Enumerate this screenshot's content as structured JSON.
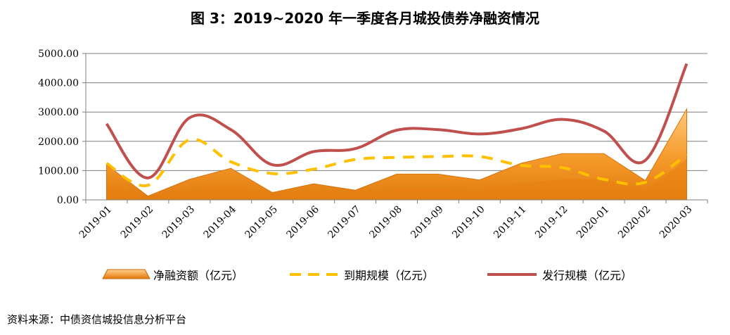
{
  "chart_data": {
    "type": "area",
    "title": "图 3：2019~2020 年一季度各月城投债券净融资情况",
    "categories": [
      "2019-01",
      "2019-02",
      "2019-03",
      "2019-04",
      "2019-05",
      "2019-06",
      "2019-07",
      "2019-08",
      "2019-09",
      "2019-10",
      "2019-11",
      "2019-12",
      "2020-01",
      "2020-02",
      "2020-03"
    ],
    "y_tick_labels": [
      "0.00",
      "1000.00",
      "2000.00",
      "3000.00",
      "4000.00",
      "5000.00"
    ],
    "ylim": [
      0,
      5000
    ],
    "xlabel": "",
    "ylabel": "",
    "grid": true,
    "legend_position": "bottom",
    "series": [
      {
        "name": "净融资额（亿元）",
        "kind": "area",
        "color": "#F5A623",
        "values": [
          1200,
          130,
          700,
          1080,
          250,
          550,
          330,
          880,
          880,
          680,
          1250,
          1580,
          1580,
          660,
          3100
        ]
      },
      {
        "name": "到期规模（亿元）",
        "kind": "dashed-line",
        "color": "#FFC000",
        "values": [
          1250,
          500,
          2050,
          1300,
          900,
          1050,
          1380,
          1450,
          1480,
          1480,
          1180,
          1100,
          700,
          600,
          1550
        ]
      },
      {
        "name": "发行规模（亿元）",
        "kind": "line",
        "color": "#C0504D",
        "values": [
          2600,
          750,
          2800,
          2400,
          1200,
          1650,
          1750,
          2380,
          2400,
          2250,
          2430,
          2750,
          2350,
          1350,
          4650
        ]
      }
    ],
    "source": "资料来源：中债资信城投信息分析平台"
  }
}
